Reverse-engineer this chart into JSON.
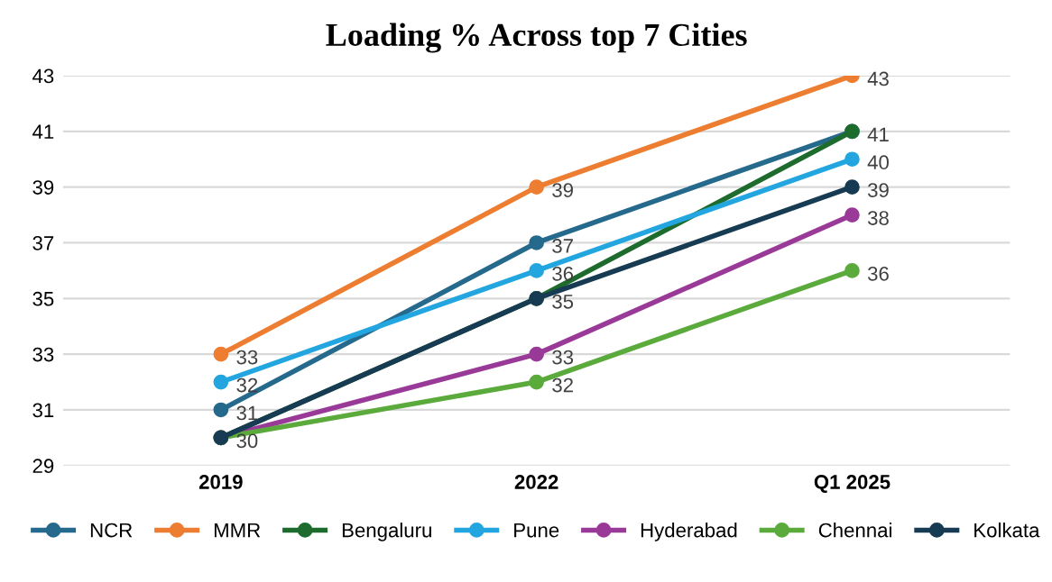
{
  "chart_data": {
    "type": "line",
    "title": "Loading % Across top 7 Cities",
    "categories": [
      "2019",
      "2022",
      "Q1 2025"
    ],
    "series": [
      {
        "name": "NCR",
        "color": "#25698c",
        "values": [
          31,
          37,
          41
        ],
        "value_labels": [
          "31",
          "37",
          "41"
        ]
      },
      {
        "name": "MMR",
        "color": "#ed7d31",
        "values": [
          33,
          39,
          43
        ],
        "value_labels": [
          "33",
          "39",
          "43"
        ]
      },
      {
        "name": "Bengaluru",
        "color": "#1e6b2e",
        "values": [
          30,
          35,
          41
        ],
        "value_labels": [
          "30",
          "35",
          null
        ]
      },
      {
        "name": "Pune",
        "color": "#23a6df",
        "values": [
          32,
          36,
          40
        ],
        "value_labels": [
          "32",
          "36",
          "40"
        ]
      },
      {
        "name": "Hyderabad",
        "color": "#9a3a98",
        "values": [
          30,
          33,
          38
        ],
        "value_labels": [
          null,
          "33",
          "38"
        ]
      },
      {
        "name": "Chennai",
        "color": "#5aab3c",
        "values": [
          30,
          32,
          36
        ],
        "value_labels": [
          null,
          "32",
          "36"
        ]
      },
      {
        "name": "Kolkata",
        "color": "#163b52",
        "values": [
          30,
          35,
          39
        ],
        "value_labels": [
          null,
          null,
          "39"
        ]
      }
    ],
    "ylim": [
      29,
      43
    ],
    "yticks": [
      29,
      31,
      33,
      35,
      37,
      39,
      41,
      43
    ],
    "grid": "y",
    "legend": "bottom",
    "marker": "circle",
    "line_style": "solid"
  }
}
